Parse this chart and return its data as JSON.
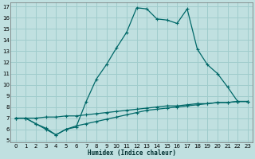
{
  "xlabel": "Humidex (Indice chaleur)",
  "bg_color": "#c0e0e0",
  "line_color": "#006868",
  "grid_color": "#a0cccc",
  "xlim": [
    -0.5,
    23.5
  ],
  "ylim": [
    4.8,
    17.4
  ],
  "xticks": [
    0,
    1,
    2,
    3,
    4,
    5,
    6,
    7,
    8,
    9,
    10,
    11,
    12,
    13,
    14,
    15,
    16,
    17,
    18,
    19,
    20,
    21,
    22,
    23
  ],
  "yticks": [
    5,
    6,
    7,
    8,
    9,
    10,
    11,
    12,
    13,
    14,
    15,
    16,
    17
  ],
  "line1_x": [
    0,
    1,
    2,
    3,
    4,
    5,
    6,
    7,
    8,
    9,
    10,
    11,
    12,
    13,
    14,
    15,
    16,
    17,
    18,
    19,
    20,
    21,
    22,
    23
  ],
  "line1_y": [
    7.0,
    7.0,
    6.5,
    6.0,
    5.5,
    6.0,
    6.2,
    8.5,
    10.5,
    11.8,
    13.3,
    14.7,
    16.9,
    16.8,
    15.9,
    15.8,
    15.5,
    16.8,
    13.2,
    11.8,
    11.0,
    9.8,
    8.5,
    8.5
  ],
  "line2_x": [
    0,
    1,
    2,
    3,
    4,
    5,
    6,
    7,
    8,
    9,
    10,
    11,
    12,
    13,
    14,
    15,
    16,
    17,
    18,
    19,
    20,
    21,
    22,
    23
  ],
  "line2_y": [
    7.0,
    7.0,
    7.0,
    7.1,
    7.1,
    7.2,
    7.2,
    7.3,
    7.4,
    7.5,
    7.6,
    7.7,
    7.8,
    7.9,
    8.0,
    8.1,
    8.1,
    8.2,
    8.3,
    8.3,
    8.4,
    8.4,
    8.5,
    8.5
  ],
  "line3_x": [
    0,
    1,
    2,
    3,
    4,
    5,
    6,
    7,
    8,
    9,
    10,
    11,
    12,
    13,
    14,
    15,
    16,
    17,
    18,
    19,
    20,
    21,
    22,
    23
  ],
  "line3_y": [
    7.0,
    7.0,
    6.5,
    6.1,
    5.5,
    6.0,
    6.3,
    6.5,
    6.7,
    6.9,
    7.1,
    7.3,
    7.5,
    7.7,
    7.8,
    7.9,
    8.0,
    8.1,
    8.2,
    8.3,
    8.4,
    8.4,
    8.5,
    8.5
  ]
}
